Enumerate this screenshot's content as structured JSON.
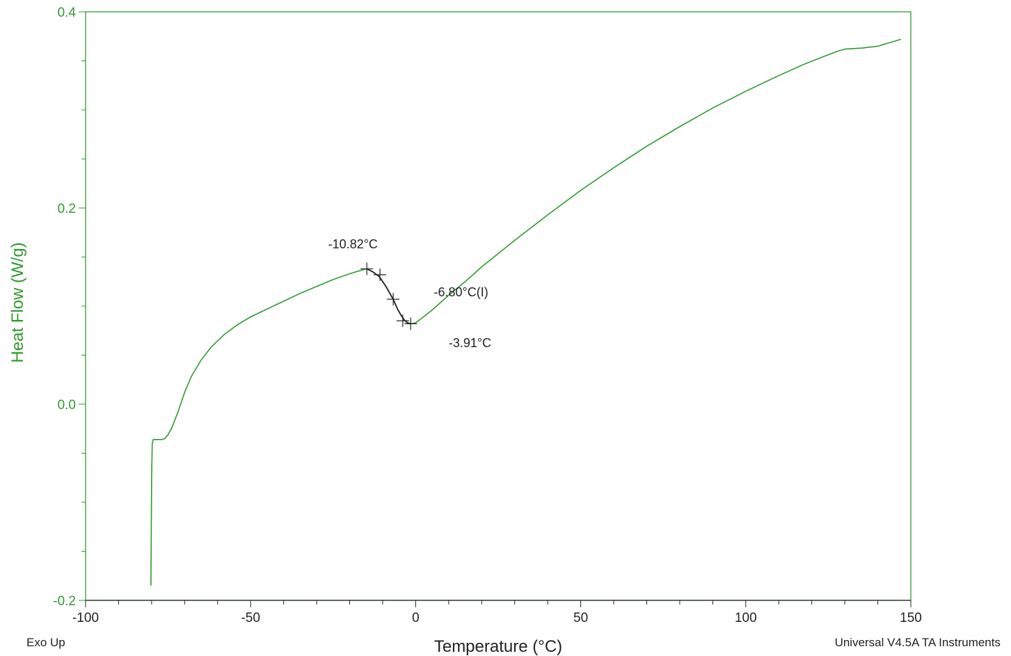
{
  "chart_data": {
    "type": "line",
    "title": "",
    "xlabel": "Temperature (°C)",
    "ylabel": "Heat Flow (W/g)",
    "xlim": [
      -100,
      150
    ],
    "ylim": [
      -0.2,
      0.4
    ],
    "x_ticks": [
      -100,
      -50,
      0,
      50,
      100,
      150
    ],
    "x_tick_labels": [
      "-100",
      "-50",
      "0",
      "50",
      "100",
      "150"
    ],
    "y_ticks": [
      -0.2,
      0.0,
      0.2,
      0.4
    ],
    "y_tick_labels": [
      "-0.2",
      "0.0",
      "0.2",
      "0.4"
    ],
    "grid": false,
    "colors": {
      "series": "#2e9a2e",
      "axis_label": "#2e9a2e",
      "annotation": "#222222",
      "frame": "#2e9a2e"
    },
    "series": [
      {
        "x": [
          -80.2,
          -80.1,
          -80.0,
          -79.8,
          -79.5,
          -79.0,
          -78.0,
          -77.0,
          -76.0,
          -75.0,
          -74.0,
          -72.0,
          -70.0,
          -68.0,
          -65.0,
          -62.0,
          -58.0,
          -54.0,
          -50.0,
          -45.0,
          -40.0,
          -35.0,
          -30.0,
          -25.0,
          -20.0,
          -16.0,
          -14.8,
          -13.0,
          -11.0,
          -9.0,
          -7.0,
          -6.8,
          -5.5,
          -4.5,
          -3.5,
          -2.5,
          -1.5,
          0.0,
          2.0,
          5.0,
          10.0,
          15.0,
          20.0,
          30.0,
          40.0,
          50.0,
          60.0,
          70.0,
          80.0,
          90.0,
          100.0,
          110.0,
          118.0,
          124.0,
          128.0,
          130.0,
          135.0,
          140.0,
          143.0,
          147.0
        ],
        "y": [
          -0.185,
          -0.13,
          -0.075,
          -0.04,
          -0.036,
          -0.036,
          -0.036,
          -0.036,
          -0.035,
          -0.031,
          -0.025,
          -0.008,
          0.012,
          0.028,
          0.045,
          0.058,
          0.071,
          0.081,
          0.089,
          0.097,
          0.105,
          0.113,
          0.12,
          0.127,
          0.133,
          0.137,
          0.138,
          0.135,
          0.13,
          0.12,
          0.108,
          0.107,
          0.097,
          0.091,
          0.086,
          0.083,
          0.082,
          0.083,
          0.088,
          0.096,
          0.111,
          0.125,
          0.14,
          0.167,
          0.193,
          0.218,
          0.241,
          0.263,
          0.283,
          0.302,
          0.319,
          0.335,
          0.347,
          0.355,
          0.36,
          0.362,
          0.363,
          0.365,
          0.368,
          0.372
        ]
      }
    ],
    "highlight": {
      "x_start": -14.8,
      "x_end": -1.5
    },
    "markers": [
      {
        "x": -14.8,
        "y": 0.138
      },
      {
        "x": -10.82,
        "y": 0.132
      },
      {
        "x": -6.8,
        "y": 0.107
      },
      {
        "x": -3.91,
        "y": 0.085
      },
      {
        "x": -1.5,
        "y": 0.082
      }
    ],
    "annotations": [
      {
        "text": "-10.82°C",
        "x": -26.5,
        "y": 0.159
      },
      {
        "text": "-6.80°C(I)",
        "x": 5.5,
        "y": 0.11
      },
      {
        "text": "-3.91°C",
        "x": 10.0,
        "y": 0.058
      }
    ]
  },
  "footer": {
    "left": "Exo Up",
    "right": "Universal V4.5A TA Instruments"
  }
}
